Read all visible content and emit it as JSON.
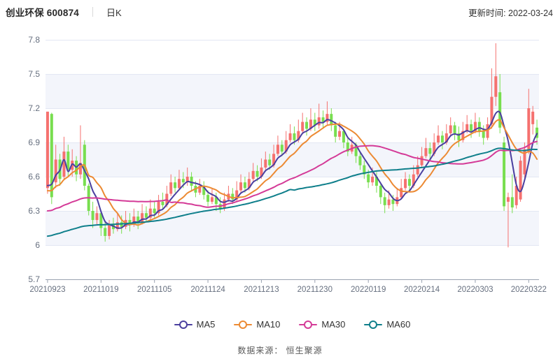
{
  "header": {
    "title": "创业环保 600874",
    "period": "日K",
    "update_time": "更新时间: 2022-03-24"
  },
  "chart_data": {
    "type": "candlestick",
    "title": "创业环保 600874 日K",
    "y_axis": {
      "tick_values": [
        7.8,
        7.5,
        7.2,
        6.9,
        6.6,
        6.3,
        6.0,
        5.7
      ],
      "tick_labels": [
        "7.8",
        "7.5",
        "7.2",
        "6.9",
        "6.6",
        "6.3",
        "6",
        "5.7"
      ],
      "range": [
        5.7,
        7.8
      ]
    },
    "x_axis": {
      "labels": [
        "20210923",
        "20211019",
        "20211105",
        "20211124",
        "20211213",
        "20211230",
        "20220119",
        "20220214",
        "20220303",
        "20220322"
      ],
      "label_indices": [
        0,
        13,
        26,
        39,
        52,
        65,
        78,
        91,
        104,
        117
      ],
      "n_points": 120
    },
    "colors": {
      "up": "#f5716f",
      "down": "#78de4f",
      "band": "#f3f5fb",
      "grid": "#e3e7f3",
      "axis": "#9aa2b1",
      "tick_text": "#666f7f"
    },
    "candle_format": "open,close,high,low (red = up, green = down)",
    "candles": [
      [
        6.5,
        7.17,
        7.17,
        6.45
      ],
      [
        7.15,
        6.42,
        7.16,
        6.36
      ],
      [
        6.55,
        6.75,
        6.88,
        6.5
      ],
      [
        6.75,
        6.58,
        6.8,
        6.52
      ],
      [
        6.6,
        6.82,
        6.95,
        6.58
      ],
      [
        6.82,
        6.66,
        6.88,
        6.6
      ],
      [
        6.66,
        6.74,
        6.84,
        6.6
      ],
      [
        6.74,
        6.62,
        6.78,
        6.56
      ],
      [
        6.62,
        6.72,
        7.05,
        6.58
      ],
      [
        6.88,
        6.52,
        6.92,
        6.48
      ],
      [
        6.52,
        6.3,
        6.54,
        6.26
      ],
      [
        6.3,
        6.22,
        6.38,
        6.15
      ],
      [
        6.22,
        6.28,
        6.34,
        6.18
      ],
      [
        6.28,
        6.15,
        6.3,
        6.08
      ],
      [
        6.15,
        6.08,
        6.2,
        6.03
      ],
      [
        6.08,
        6.18,
        6.22,
        6.05
      ],
      [
        6.18,
        6.14,
        6.24,
        6.1
      ],
      [
        6.14,
        6.2,
        6.28,
        6.12
      ],
      [
        6.2,
        6.16,
        6.26,
        6.1
      ],
      [
        6.16,
        6.22,
        6.3,
        6.14
      ],
      [
        6.22,
        6.18,
        6.28,
        6.12
      ],
      [
        6.18,
        6.25,
        6.32,
        6.16
      ],
      [
        6.25,
        6.2,
        6.3,
        6.14
      ],
      [
        6.2,
        6.28,
        6.36,
        6.18
      ],
      [
        6.28,
        6.24,
        6.34,
        6.2
      ],
      [
        6.24,
        6.32,
        6.4,
        6.22
      ],
      [
        6.32,
        6.28,
        6.38,
        6.24
      ],
      [
        6.28,
        6.38,
        6.44,
        6.26
      ],
      [
        6.38,
        6.35,
        6.46,
        6.32
      ],
      [
        6.35,
        6.45,
        6.52,
        6.33
      ],
      [
        6.45,
        6.55,
        6.62,
        6.43
      ],
      [
        6.55,
        6.5,
        6.6,
        6.46
      ],
      [
        6.5,
        6.58,
        6.66,
        6.48
      ],
      [
        6.58,
        6.55,
        6.64,
        6.5
      ],
      [
        6.55,
        6.6,
        6.68,
        6.52
      ],
      [
        6.6,
        6.52,
        6.64,
        6.48
      ],
      [
        6.52,
        6.46,
        6.56,
        6.42
      ],
      [
        6.46,
        6.52,
        6.58,
        6.44
      ],
      [
        6.52,
        6.44,
        6.56,
        6.4
      ],
      [
        6.44,
        6.38,
        6.48,
        6.34
      ],
      [
        6.38,
        6.42,
        6.5,
        6.36
      ],
      [
        6.42,
        6.36,
        6.46,
        6.3
      ],
      [
        6.36,
        6.32,
        6.42,
        6.28
      ],
      [
        6.32,
        6.4,
        6.46,
        6.3
      ],
      [
        6.4,
        6.45,
        6.52,
        6.38
      ],
      [
        6.45,
        6.4,
        6.5,
        6.36
      ],
      [
        6.4,
        6.48,
        6.56,
        6.38
      ],
      [
        6.48,
        6.55,
        6.62,
        6.46
      ],
      [
        6.55,
        6.5,
        6.6,
        6.46
      ],
      [
        6.5,
        6.58,
        6.64,
        6.48
      ],
      [
        6.58,
        6.65,
        6.72,
        6.56
      ],
      [
        6.65,
        6.6,
        6.7,
        6.56
      ],
      [
        6.6,
        6.68,
        6.76,
        6.58
      ],
      [
        6.68,
        6.75,
        6.82,
        6.66
      ],
      [
        6.75,
        6.7,
        6.8,
        6.66
      ],
      [
        6.7,
        6.8,
        6.88,
        6.68
      ],
      [
        6.8,
        6.88,
        6.96,
        6.78
      ],
      [
        6.88,
        6.82,
        6.92,
        6.78
      ],
      [
        6.82,
        6.92,
        7.0,
        6.8
      ],
      [
        6.92,
        6.98,
        7.06,
        6.9
      ],
      [
        6.98,
        6.92,
        7.04,
        6.88
      ],
      [
        6.92,
        7.0,
        7.1,
        6.9
      ],
      [
        7.0,
        7.08,
        7.16,
        6.98
      ],
      [
        7.08,
        7.02,
        7.12,
        6.96
      ],
      [
        7.02,
        7.1,
        7.2,
        7.0
      ],
      [
        7.1,
        7.05,
        7.16,
        7.0
      ],
      [
        7.05,
        7.12,
        7.24,
        7.02
      ],
      [
        7.12,
        7.08,
        7.18,
        7.02
      ],
      [
        7.08,
        7.15,
        7.26,
        7.05
      ],
      [
        7.15,
        7.05,
        7.2,
        7.0
      ],
      [
        7.05,
        6.95,
        7.08,
        6.9
      ],
      [
        6.95,
        7.0,
        7.08,
        6.92
      ],
      [
        7.0,
        6.9,
        7.02,
        6.85
      ],
      [
        6.9,
        6.82,
        6.94,
        6.78
      ],
      [
        6.82,
        6.88,
        6.95,
        6.8
      ],
      [
        6.88,
        6.78,
        6.9,
        6.72
      ],
      [
        6.78,
        6.7,
        6.82,
        6.66
      ],
      [
        6.7,
        6.62,
        6.74,
        6.58
      ],
      [
        6.62,
        6.55,
        6.66,
        6.5
      ],
      [
        6.55,
        6.6,
        6.68,
        6.52
      ],
      [
        6.6,
        6.52,
        6.64,
        6.46
      ],
      [
        6.52,
        6.42,
        6.54,
        6.36
      ],
      [
        6.42,
        6.35,
        6.46,
        6.28
      ],
      [
        6.35,
        6.4,
        6.48,
        6.32
      ],
      [
        6.4,
        6.36,
        6.44,
        6.3
      ],
      [
        6.36,
        6.42,
        6.5,
        6.34
      ],
      [
        6.42,
        6.5,
        6.58,
        6.4
      ],
      [
        6.5,
        6.58,
        6.64,
        6.48
      ],
      [
        6.58,
        6.52,
        6.62,
        6.46
      ],
      [
        6.52,
        6.62,
        6.7,
        6.5
      ],
      [
        6.62,
        6.7,
        6.78,
        6.6
      ],
      [
        6.7,
        6.78,
        6.86,
        6.68
      ],
      [
        6.78,
        6.85,
        6.94,
        6.76
      ],
      [
        6.85,
        6.8,
        6.9,
        6.74
      ],
      [
        6.8,
        6.9,
        6.98,
        6.78
      ],
      [
        6.9,
        6.96,
        7.05,
        6.88
      ],
      [
        6.96,
        6.9,
        7.0,
        6.84
      ],
      [
        6.9,
        6.98,
        7.06,
        6.88
      ],
      [
        6.98,
        7.05,
        7.12,
        6.96
      ],
      [
        7.05,
        6.98,
        7.08,
        6.92
      ],
      [
        6.98,
        6.92,
        7.04,
        6.86
      ],
      [
        6.92,
        7.0,
        7.08,
        6.9
      ],
      [
        7.0,
        7.06,
        7.14,
        6.98
      ],
      [
        7.06,
        7.0,
        7.1,
        6.94
      ],
      [
        7.0,
        7.08,
        7.16,
        6.98
      ],
      [
        7.08,
        7.0,
        7.12,
        6.95
      ],
      [
        7.0,
        6.94,
        7.05,
        6.88
      ],
      [
        6.94,
        7.06,
        7.12,
        6.92
      ],
      [
        7.06,
        7.3,
        7.55,
        7.02
      ],
      [
        7.3,
        7.48,
        7.77,
        7.22
      ],
      [
        7.34,
        7.03,
        7.5,
        6.98
      ],
      [
        6.9,
        6.34,
        6.95,
        6.3
      ],
      [
        6.38,
        6.42,
        6.46,
        5.98
      ],
      [
        6.42,
        6.33,
        6.62,
        6.28
      ],
      [
        6.35,
        6.52,
        6.6,
        6.32
      ],
      [
        6.4,
        6.74,
        6.78,
        6.38
      ],
      [
        6.62,
        6.84,
        6.9,
        6.58
      ],
      [
        6.82,
        7.2,
        7.37,
        6.8
      ],
      [
        7.06,
        7.17,
        7.22,
        6.97
      ],
      [
        7.03,
        6.94,
        7.1,
        6.88
      ]
    ],
    "ma_series": [
      {
        "name": "MA5",
        "period": 5,
        "color": "#4a3f9f",
        "pre_window_avg_estimate": 6.36
      },
      {
        "name": "MA10",
        "period": 10,
        "color": "#ec8a33",
        "pre_window_avg_estimate": 6.4
      },
      {
        "name": "MA30",
        "period": 30,
        "color": "#d43a97",
        "pre_window_avg_estimate": 6.27
      },
      {
        "name": "MA60",
        "period": 60,
        "color": "#0f7f8b",
        "pre_window_avg_estimate": 6.06
      }
    ],
    "legend_position": "bottom",
    "grid": "horizontal lines with alternating light band fills",
    "source_label": "数据来源： 恒生聚源"
  }
}
